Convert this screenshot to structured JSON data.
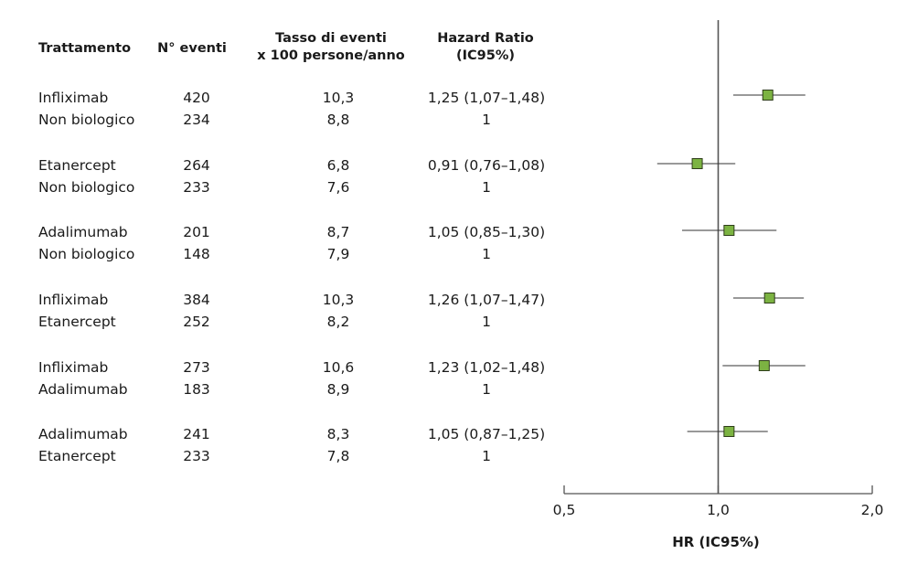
{
  "table": {
    "headers": {
      "treatment": "Trattamento",
      "events": "N° eventi",
      "rate_line1": "Tasso di eventi",
      "rate_line2": "x 100 persone/anno",
      "hr_line1": "Hazard Ratio",
      "hr_line2": "(IC95%)"
    },
    "rows": [
      {
        "drug": "Infliximab",
        "events": "420",
        "rate": "10,3",
        "hr": "1,25 (1,07–1,48)"
      },
      {
        "drug": "Non biologico",
        "events": "234",
        "rate": "8,8",
        "hr": "1"
      },
      {
        "drug": "Etanercept",
        "events": "264",
        "rate": "6,8",
        "hr": "0,91 (0,76–1,08)"
      },
      {
        "drug": "Non biologico",
        "events": "233",
        "rate": "7,6",
        "hr": "1"
      },
      {
        "drug": "Adalimumab",
        "events": "201",
        "rate": "8,7",
        "hr": "1,05 (0,85–1,30)"
      },
      {
        "drug": "Non biologico",
        "events": "148",
        "rate": "7,9",
        "hr": "1"
      },
      {
        "drug": "Infliximab",
        "events": "384",
        "rate": "10,3",
        "hr": "1,26 (1,07–1,47)"
      },
      {
        "drug": "Etanercept",
        "events": "252",
        "rate": "8,2",
        "hr": "1"
      },
      {
        "drug": "Infliximab",
        "events": "273",
        "rate": "10,6",
        "hr": "1,23 (1,02–1,48)"
      },
      {
        "drug": "Adalimumab",
        "events": "183",
        "rate": "8,9",
        "hr": "1"
      },
      {
        "drug": "Adalimumab",
        "events": "241",
        "rate": "8,3",
        "hr": "1,05 (0,87–1,25)"
      },
      {
        "drug": "Etanercept",
        "events": "233",
        "rate": "7,8",
        "hr": "1"
      }
    ]
  },
  "chart_data": {
    "type": "forest",
    "scale": "log",
    "xlim": [
      0.5,
      2.0
    ],
    "reference_line": 1.0,
    "xticks": [
      0.5,
      1.0,
      2.0
    ],
    "xtick_labels": [
      "0,5",
      "1,0",
      "2,0"
    ],
    "xlabel": "HR (IC95%)",
    "marker_color": "#7cb342",
    "points": [
      {
        "comparison": "Infliximab vs Non biologico",
        "hr": 1.25,
        "lo": 1.07,
        "hi": 1.48
      },
      {
        "comparison": "Etanercept vs Non biologico",
        "hr": 0.91,
        "lo": 0.76,
        "hi": 1.08
      },
      {
        "comparison": "Adalimumab vs Non biologico",
        "hr": 1.05,
        "lo": 0.85,
        "hi": 1.3
      },
      {
        "comparison": "Infliximab vs Etanercept",
        "hr": 1.26,
        "lo": 1.07,
        "hi": 1.47
      },
      {
        "comparison": "Infliximab vs Adalimumab",
        "hr": 1.23,
        "lo": 1.02,
        "hi": 1.48
      },
      {
        "comparison": "Adalimumab vs Etanercept",
        "hr": 1.05,
        "lo": 0.87,
        "hi": 1.25
      }
    ]
  }
}
